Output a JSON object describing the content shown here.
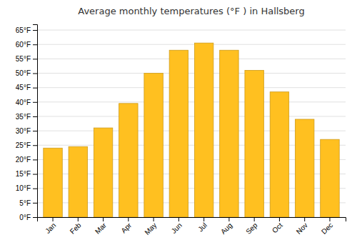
{
  "chart_data": {
    "type": "bar",
    "title": "Average monthly temperatures (°F ) in Hallsberg",
    "categories": [
      "Jan",
      "Feb",
      "Mar",
      "Apr",
      "May",
      "Jun",
      "Jul",
      "Aug",
      "Sep",
      "Oct",
      "Nov",
      "Dec"
    ],
    "values": [
      24,
      24.5,
      31,
      39.5,
      50,
      58,
      60.5,
      58,
      51,
      43.5,
      34,
      27
    ],
    "color": "#FFC020",
    "ylim": [
      0,
      67
    ],
    "yticks": [
      {
        "value": 0,
        "label": "0°F"
      },
      {
        "value": 5,
        "label": "5°F"
      },
      {
        "value": 10,
        "label": "10°F"
      },
      {
        "value": 15,
        "label": "15°F"
      },
      {
        "value": 20,
        "label": "20°F"
      },
      {
        "value": 25,
        "label": "25°F"
      },
      {
        "value": 30,
        "label": "30°F"
      },
      {
        "value": 35,
        "label": "35°F"
      },
      {
        "value": 40,
        "label": "40°F"
      },
      {
        "value": 45,
        "label": "45°F"
      },
      {
        "value": 50,
        "label": "50°F"
      },
      {
        "value": 55,
        "label": "55°F"
      },
      {
        "value": 60,
        "label": "60°F"
      },
      {
        "value": 65,
        "label": "65°F"
      }
    ],
    "grid": true
  }
}
